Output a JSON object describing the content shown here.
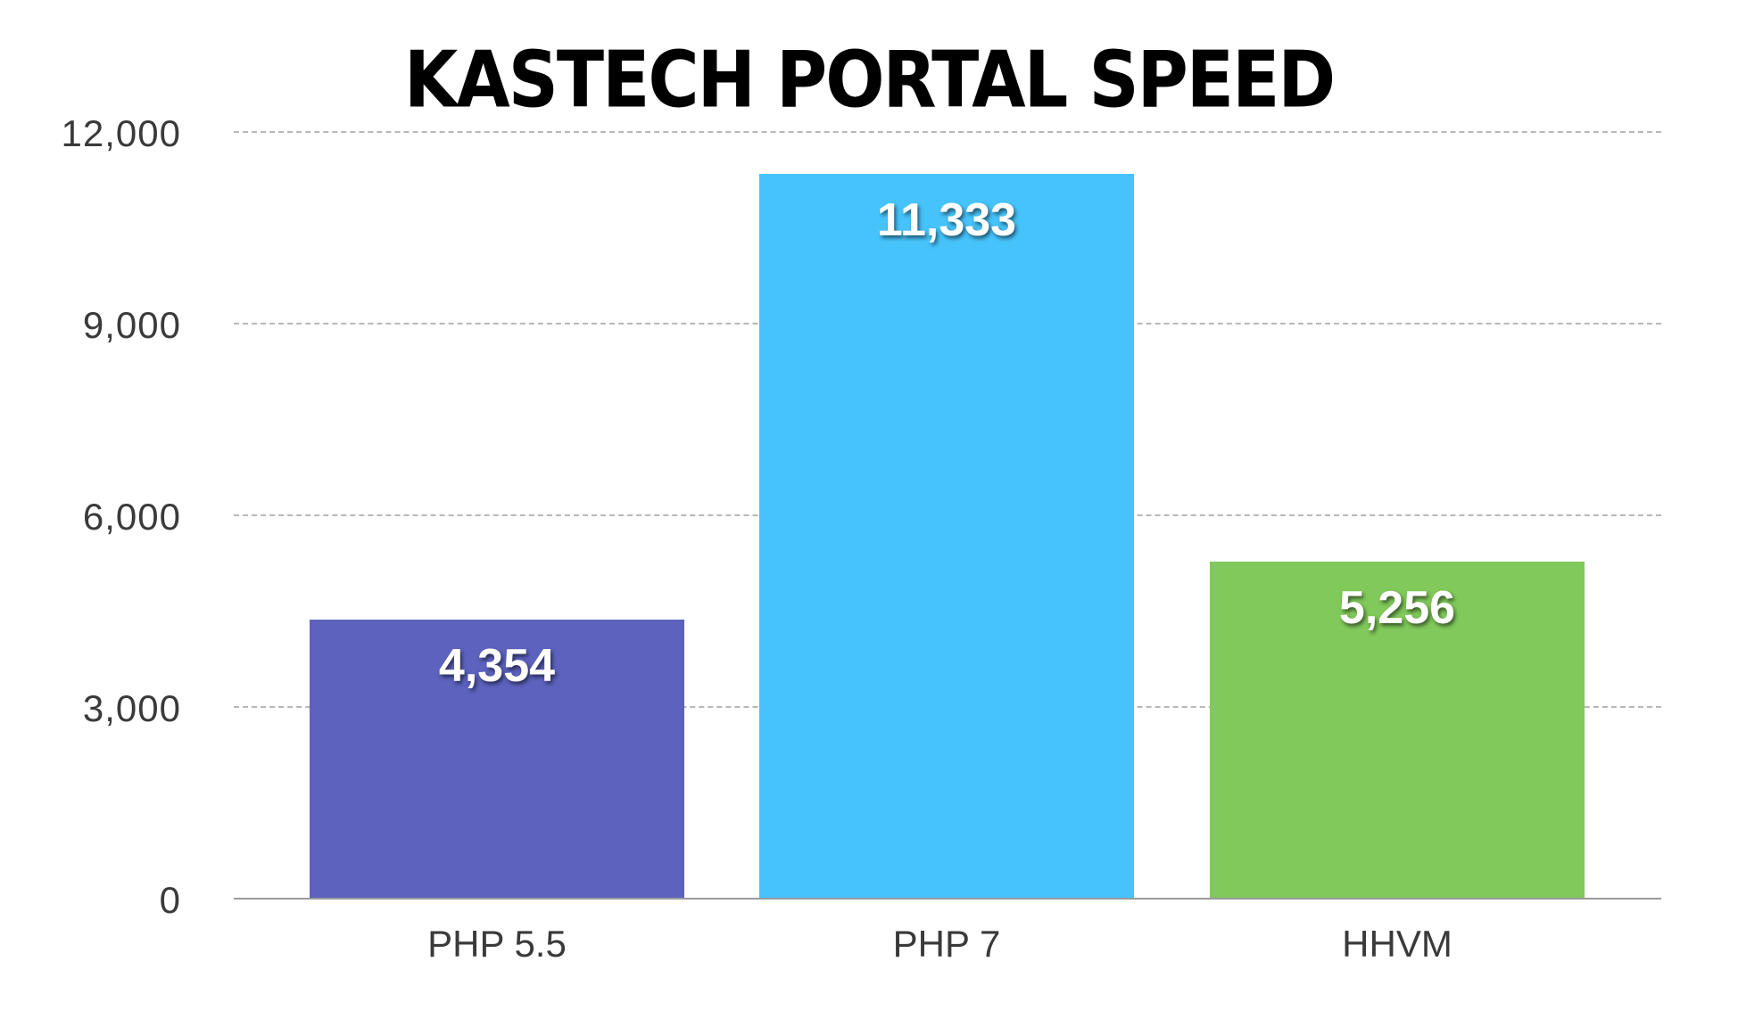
{
  "chart_data": {
    "type": "bar",
    "title": "KASTECH PORTAL SPEED",
    "xlabel": "",
    "ylabel": "",
    "categories": [
      "PHP 5.5",
      "PHP 7",
      "HHVM"
    ],
    "values": [
      4354,
      11333,
      5256
    ],
    "value_labels": [
      "4,354",
      "11,333",
      "5,256"
    ],
    "colors": [
      "#5c62bd",
      "#46c3fb",
      "#80c95a"
    ],
    "ylim": [
      0,
      12000
    ],
    "yticks": [
      0,
      3000,
      6000,
      9000,
      12000
    ],
    "ytick_labels": [
      "0",
      "3,000",
      "6,000",
      "9,000",
      "12,000"
    ],
    "grid": true,
    "grid_style": "dashed",
    "legend": null
  }
}
